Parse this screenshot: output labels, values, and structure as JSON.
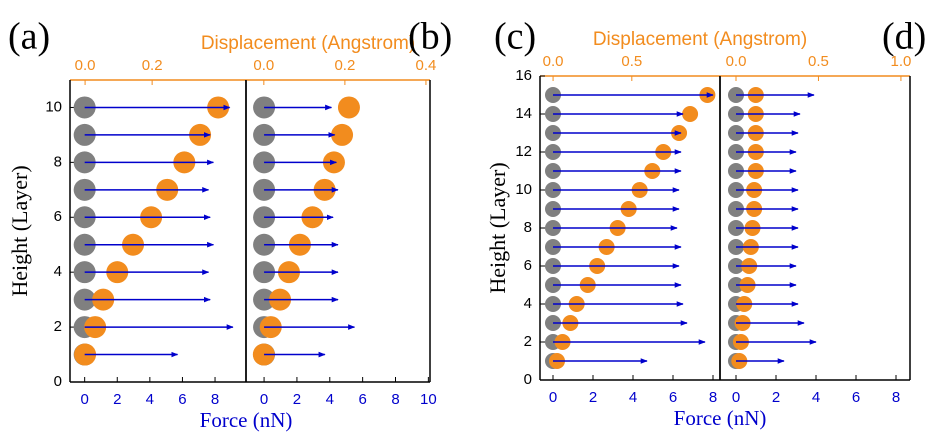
{
  "chart_data": [
    {
      "type": "arrows",
      "label": "(a)",
      "ylabel": "Height (Layer)",
      "xlabel": "Force (nN)",
      "x2label": "Displacement (Angstrom)",
      "y": [
        1,
        2,
        3,
        4,
        5,
        6,
        7,
        8,
        9,
        10
      ],
      "force": [
        5.7,
        9.1,
        7.7,
        7.6,
        7.9,
        7.7,
        7.6,
        7.9,
        7.7,
        8.9
      ],
      "displacement": [
        0,
        0.03,
        0.054,
        0.096,
        0.143,
        0.197,
        0.245,
        0.296,
        0.343,
        0.397
      ],
      "ylim": [
        0,
        11
      ],
      "yticks": [
        0,
        2,
        4,
        6,
        8,
        10
      ],
      "xlim": [
        -0.9,
        9.9
      ],
      "xticks": [
        0,
        2,
        4,
        6,
        8
      ],
      "x2lim": [
        -0.045,
        0.48
      ],
      "x2ticks": [
        {
          "value": 0,
          "label": "0.0"
        },
        0.2
      ],
      "colors": {
        "atom": "#808080",
        "arrow": "#0000cc",
        "shift": "#f28c1e"
      }
    },
    {
      "type": "arrows",
      "label": "(b)",
      "y": [
        1,
        2,
        3,
        4,
        5,
        6,
        7,
        8,
        9,
        10
      ],
      "force": [
        3.7,
        5.5,
        4.5,
        4.5,
        4.5,
        4.2,
        4.5,
        4.4,
        4.3,
        4.1
      ],
      "displacement": [
        0,
        0.017,
        0.04,
        0.062,
        0.089,
        0.12,
        0.15,
        0.173,
        0.193,
        0.21
      ],
      "ylim": [
        0,
        11
      ],
      "xlim": [
        -1.1,
        10.1
      ],
      "xticks": [
        0,
        2,
        4,
        6,
        8,
        10
      ],
      "x2lim": [
        -0.044,
        0.41
      ],
      "x2ticks": [
        {
          "value": 0,
          "label": "0.0"
        },
        0.2,
        0.4
      ],
      "colors": {
        "atom": "#808080",
        "arrow": "#0000cc",
        "shift": "#f28c1e"
      }
    },
    {
      "type": "arrows",
      "label": "(c)",
      "ylabel": "Height (Layer)",
      "xlabel": "Force (nN)",
      "x2label": "Displacement (Angstrom)",
      "y": [
        1,
        2,
        3,
        4,
        5,
        6,
        7,
        8,
        9,
        10,
        11,
        12,
        13,
        14,
        15
      ],
      "force": [
        4.7,
        7.6,
        6.7,
        6.5,
        6.4,
        6.3,
        6.4,
        6.2,
        6.3,
        6.3,
        6.4,
        6.4,
        6.4,
        6.5,
        8.0
      ],
      "displacement": [
        0.025,
        0.06,
        0.11,
        0.15,
        0.22,
        0.28,
        0.34,
        0.41,
        0.48,
        0.55,
        0.63,
        0.7,
        0.8,
        0.87,
        0.98
      ],
      "ylim": [
        0,
        16
      ],
      "yticks": [
        0,
        2,
        4,
        6,
        8,
        10,
        12,
        14,
        16
      ],
      "xlim": [
        -0.65,
        8.35
      ],
      "xticks": [
        0,
        2,
        4,
        6,
        8
      ],
      "x2lim": [
        -0.083,
        1.06
      ],
      "x2ticks": [
        {
          "value": 0,
          "label": "0.0"
        },
        0.5
      ],
      "colors": {
        "atom": "#808080",
        "arrow": "#0000cc",
        "shift": "#f28c1e"
      }
    },
    {
      "type": "arrows",
      "label": "(d)",
      "y": [
        1,
        2,
        3,
        4,
        5,
        6,
        7,
        8,
        9,
        10,
        11,
        12,
        13,
        14,
        15
      ],
      "force": [
        2.4,
        4.0,
        3.4,
        3.1,
        3.0,
        3.0,
        3.1,
        3.1,
        3.1,
        3.1,
        3.0,
        3.0,
        3.1,
        3.2,
        3.9
      ],
      "displacement": [
        0.02,
        0.03,
        0.04,
        0.05,
        0.07,
        0.08,
        0.09,
        0.1,
        0.11,
        0.11,
        0.12,
        0.12,
        0.12,
        0.12,
        0.12
      ],
      "ylim": [
        0,
        16
      ],
      "xlim": [
        -0.8,
        8.7
      ],
      "xticks": [
        0,
        2,
        4,
        6,
        8
      ],
      "x2lim": [
        -0.097,
        1.055
      ],
      "x2ticks": [
        {
          "value": 0,
          "label": "0.0"
        },
        0.5,
        {
          "value": 1,
          "label": "1.0"
        }
      ],
      "colors": {
        "atom": "#808080",
        "arrow": "#0000cc",
        "shift": "#f28c1e"
      }
    }
  ]
}
